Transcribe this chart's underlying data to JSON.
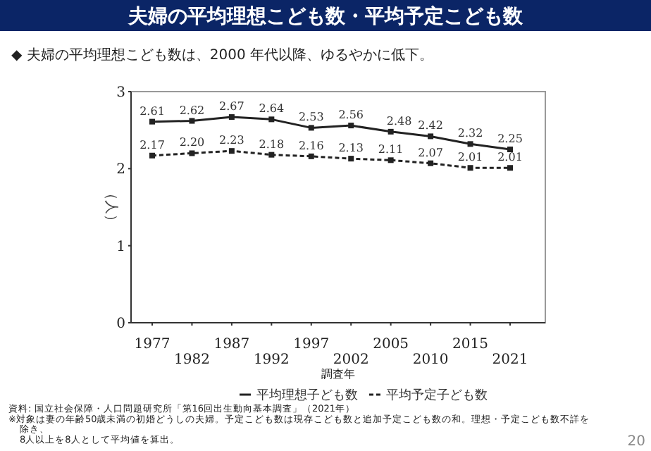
{
  "chart_data": {
    "type": "line",
    "title": "夫婦の平均理想こども数・平均予定こども数",
    "subtitle": "◆ 夫婦の平均理想こども数は、2000 年代以降、ゆるやかに低下。",
    "xlabel": "調査年",
    "ylabel": "（人）",
    "categories": [
      "1977",
      "1982",
      "1987",
      "1992",
      "1997",
      "2002",
      "2005",
      "2010",
      "2015",
      "2021"
    ],
    "series": [
      {
        "name": "平均理想子ども数",
        "color": "#222222",
        "line_style": "solid",
        "values": [
          2.61,
          2.62,
          2.67,
          2.64,
          2.53,
          2.56,
          2.48,
          2.42,
          2.32,
          2.25
        ],
        "value_labels": [
          "2.61",
          "2.62",
          "2.67",
          "2.64",
          "2.53",
          "2.56",
          "2.48",
          "2.42",
          "2.32",
          "2.25"
        ]
      },
      {
        "name": "平均予定子ども数",
        "color": "#222222",
        "line_style": "dashed",
        "values": [
          2.17,
          2.2,
          2.23,
          2.18,
          2.16,
          2.13,
          2.11,
          2.07,
          2.01,
          2.01
        ],
        "value_labels": [
          "2.17",
          "2.20",
          "2.23",
          "2.18",
          "2.16",
          "2.13",
          "2.11",
          "2.07",
          "2.01",
          "2.01"
        ]
      }
    ],
    "ylim": [
      0,
      3
    ],
    "yticks": [
      0,
      1,
      2,
      3
    ],
    "legend": "bottom",
    "marker": "square",
    "annotations": [
      "資料: 国立社会保障・人口問題研究所「第16回出生動向基本調査」（2021年）",
      "※対象は妻の年齢50歳未満の初婚どうしの夫婦。予定こども数は現存こども数と追加予定こども数の和。理想・予定こども数不詳を除き、",
      "8人以上を8人として平均値を算出。",
      "20"
    ]
  }
}
